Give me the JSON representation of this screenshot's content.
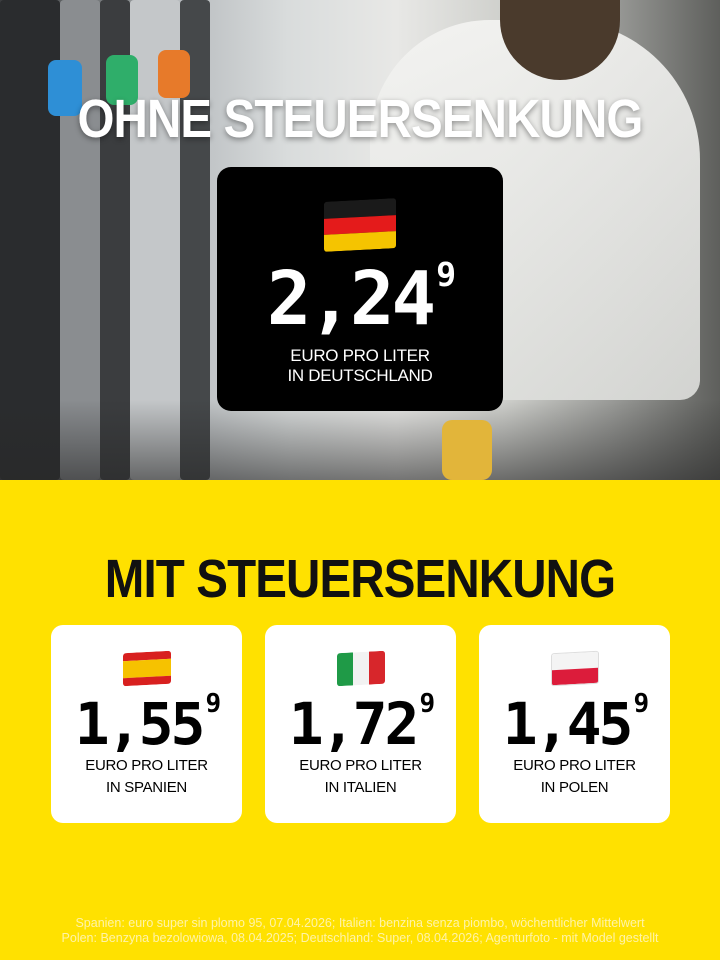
{
  "top": {
    "heading": "OHNE STEUERSENKUNG",
    "germany": {
      "flag": "germany-flag",
      "price_main": "2,24",
      "price_sup": "9",
      "unit": "EURO PRO LITER",
      "location": "IN DEUTSCHLAND"
    }
  },
  "bottom": {
    "heading": "MIT STEUERSENKUNG",
    "cards": [
      {
        "flag": "spain-flag",
        "price_main": "1,55",
        "price_sup": "9",
        "unit": "EURO PRO LITER",
        "location": "IN SPANIEN"
      },
      {
        "flag": "italy-flag",
        "price_main": "1,72",
        "price_sup": "9",
        "unit": "EURO PRO LITER",
        "location": "IN ITALIEN"
      },
      {
        "flag": "poland-flag",
        "price_main": "1,45",
        "price_sup": "9",
        "unit": "EURO PRO LITER",
        "location": "IN POLEN"
      }
    ]
  },
  "footer": {
    "line1": "Spanien: euro super sin plomo 95, 07.04.2026; Italien: benzina senza piombo, wöchentlicher Mittelwert",
    "line2": "Polen: Benzyna bezolowiowa, 08.04.2025; Deutschland: Super, 08.04.2026; Agenturfoto - mit Model gestellt"
  },
  "colors": {
    "yellow": "#FFE100",
    "black": "#000000"
  }
}
